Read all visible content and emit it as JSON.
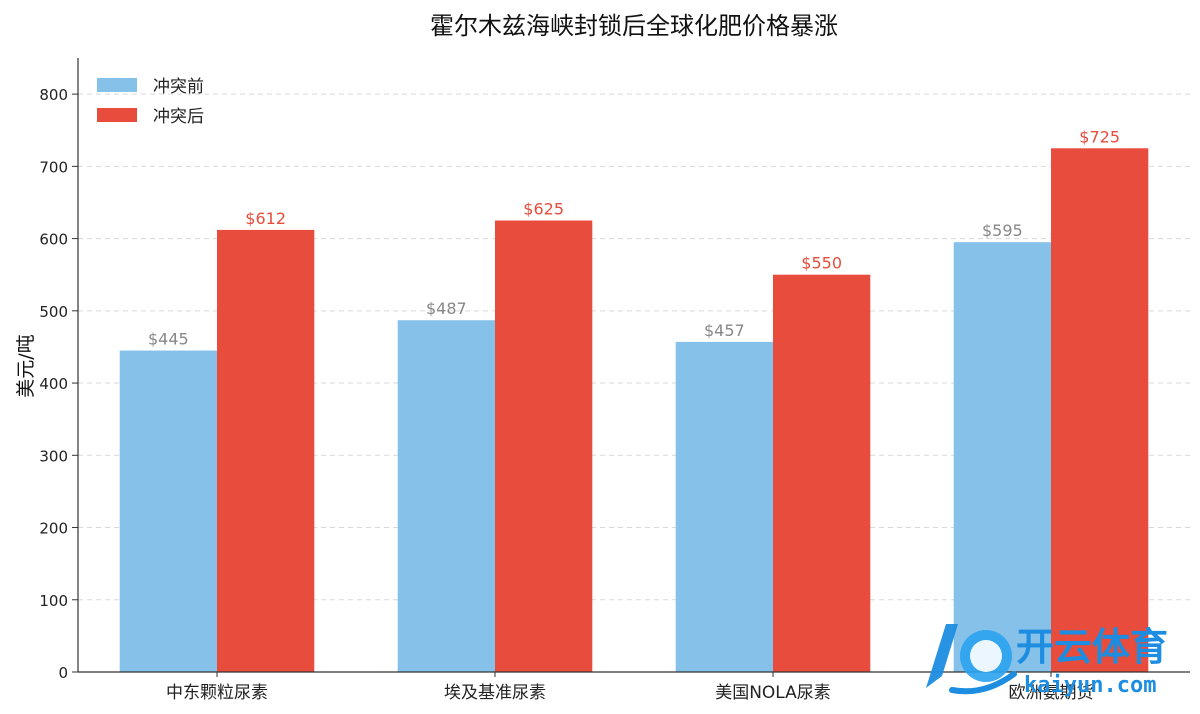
{
  "chart_data": {
    "type": "bar",
    "title": "霍尔木兹海峡封锁后全球化肥价格暴涨",
    "xlabel": "",
    "ylabel": "美元/吨",
    "categories": [
      "中东颗粒尿素",
      "埃及基准尿素",
      "美国NOLA尿素",
      "欧洲氨期货"
    ],
    "series": [
      {
        "name": "冲突前",
        "values": [
          445,
          487,
          457,
          595
        ],
        "color": "#85C1E9",
        "labels": [
          "$445",
          "$487",
          "$457",
          "$595"
        ]
      },
      {
        "name": "冲突后",
        "values": [
          612,
          625,
          550,
          725
        ],
        "color": "#E74C3C",
        "labels": [
          "$612",
          "$625",
          "$550",
          "$725"
        ]
      }
    ],
    "ylim": [
      0,
      850
    ],
    "yticks": [
      0,
      100,
      200,
      300,
      400,
      500,
      600,
      700,
      800
    ],
    "grid": "horizontal-dashed",
    "legend": "top-left"
  },
  "watermark": {
    "brand": "开云体育",
    "url": "kaiyun.com"
  }
}
